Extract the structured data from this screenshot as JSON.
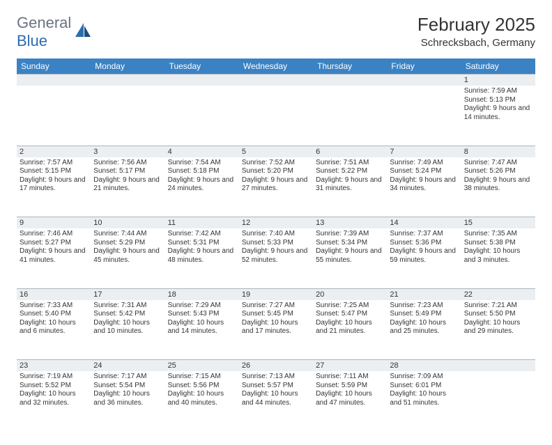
{
  "logo": {
    "text_gray": "General",
    "text_blue": "Blue"
  },
  "title": "February 2025",
  "location": "Schrecksbach, Germany",
  "colors": {
    "header_bg": "#3b82c4",
    "header_text": "#ffffff",
    "daynum_bg": "#eceff1",
    "border": "#a8b4c0",
    "text": "#333333",
    "logo_gray": "#6b7280",
    "logo_blue": "#2b6cb0"
  },
  "weekdays": [
    "Sunday",
    "Monday",
    "Tuesday",
    "Wednesday",
    "Thursday",
    "Friday",
    "Saturday"
  ],
  "weeks": [
    [
      null,
      null,
      null,
      null,
      null,
      null,
      {
        "n": "1",
        "sr": "7:59 AM",
        "ss": "5:13 PM",
        "dl": "9 hours and 14 minutes."
      }
    ],
    [
      {
        "n": "2",
        "sr": "7:57 AM",
        "ss": "5:15 PM",
        "dl": "9 hours and 17 minutes."
      },
      {
        "n": "3",
        "sr": "7:56 AM",
        "ss": "5:17 PM",
        "dl": "9 hours and 21 minutes."
      },
      {
        "n": "4",
        "sr": "7:54 AM",
        "ss": "5:18 PM",
        "dl": "9 hours and 24 minutes."
      },
      {
        "n": "5",
        "sr": "7:52 AM",
        "ss": "5:20 PM",
        "dl": "9 hours and 27 minutes."
      },
      {
        "n": "6",
        "sr": "7:51 AM",
        "ss": "5:22 PM",
        "dl": "9 hours and 31 minutes."
      },
      {
        "n": "7",
        "sr": "7:49 AM",
        "ss": "5:24 PM",
        "dl": "9 hours and 34 minutes."
      },
      {
        "n": "8",
        "sr": "7:47 AM",
        "ss": "5:26 PM",
        "dl": "9 hours and 38 minutes."
      }
    ],
    [
      {
        "n": "9",
        "sr": "7:46 AM",
        "ss": "5:27 PM",
        "dl": "9 hours and 41 minutes."
      },
      {
        "n": "10",
        "sr": "7:44 AM",
        "ss": "5:29 PM",
        "dl": "9 hours and 45 minutes."
      },
      {
        "n": "11",
        "sr": "7:42 AM",
        "ss": "5:31 PM",
        "dl": "9 hours and 48 minutes."
      },
      {
        "n": "12",
        "sr": "7:40 AM",
        "ss": "5:33 PM",
        "dl": "9 hours and 52 minutes."
      },
      {
        "n": "13",
        "sr": "7:39 AM",
        "ss": "5:34 PM",
        "dl": "9 hours and 55 minutes."
      },
      {
        "n": "14",
        "sr": "7:37 AM",
        "ss": "5:36 PM",
        "dl": "9 hours and 59 minutes."
      },
      {
        "n": "15",
        "sr": "7:35 AM",
        "ss": "5:38 PM",
        "dl": "10 hours and 3 minutes."
      }
    ],
    [
      {
        "n": "16",
        "sr": "7:33 AM",
        "ss": "5:40 PM",
        "dl": "10 hours and 6 minutes."
      },
      {
        "n": "17",
        "sr": "7:31 AM",
        "ss": "5:42 PM",
        "dl": "10 hours and 10 minutes."
      },
      {
        "n": "18",
        "sr": "7:29 AM",
        "ss": "5:43 PM",
        "dl": "10 hours and 14 minutes."
      },
      {
        "n": "19",
        "sr": "7:27 AM",
        "ss": "5:45 PM",
        "dl": "10 hours and 17 minutes."
      },
      {
        "n": "20",
        "sr": "7:25 AM",
        "ss": "5:47 PM",
        "dl": "10 hours and 21 minutes."
      },
      {
        "n": "21",
        "sr": "7:23 AM",
        "ss": "5:49 PM",
        "dl": "10 hours and 25 minutes."
      },
      {
        "n": "22",
        "sr": "7:21 AM",
        "ss": "5:50 PM",
        "dl": "10 hours and 29 minutes."
      }
    ],
    [
      {
        "n": "23",
        "sr": "7:19 AM",
        "ss": "5:52 PM",
        "dl": "10 hours and 32 minutes."
      },
      {
        "n": "24",
        "sr": "7:17 AM",
        "ss": "5:54 PM",
        "dl": "10 hours and 36 minutes."
      },
      {
        "n": "25",
        "sr": "7:15 AM",
        "ss": "5:56 PM",
        "dl": "10 hours and 40 minutes."
      },
      {
        "n": "26",
        "sr": "7:13 AM",
        "ss": "5:57 PM",
        "dl": "10 hours and 44 minutes."
      },
      {
        "n": "27",
        "sr": "7:11 AM",
        "ss": "5:59 PM",
        "dl": "10 hours and 47 minutes."
      },
      {
        "n": "28",
        "sr": "7:09 AM",
        "ss": "6:01 PM",
        "dl": "10 hours and 51 minutes."
      },
      null
    ]
  ],
  "labels": {
    "sunrise": "Sunrise:",
    "sunset": "Sunset:",
    "daylight": "Daylight:"
  }
}
